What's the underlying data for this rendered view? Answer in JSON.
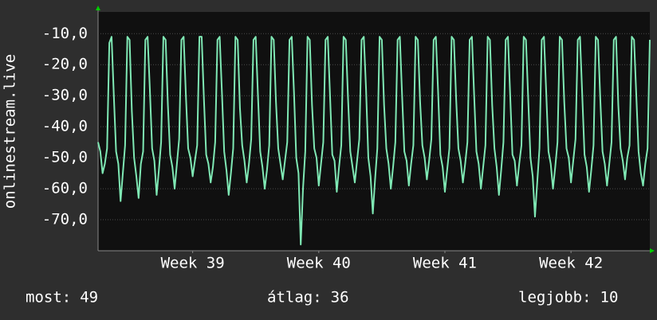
{
  "chart_data": {
    "type": "line",
    "ylabel": "onlinestream.live",
    "color": "#7fe8b4",
    "values": [
      -45,
      -48,
      -55,
      -52,
      -47,
      -13,
      -11,
      -30,
      -48,
      -52,
      -64,
      -55,
      -46,
      -11,
      -12,
      -35,
      -50,
      -56,
      -63,
      -52,
      -48,
      -12,
      -11,
      -28,
      -47,
      -51,
      -62,
      -54,
      -45,
      -11,
      -12,
      -33,
      -49,
      -53,
      -60,
      -52,
      -44,
      -12,
      -11,
      -30,
      -47,
      -50,
      -56,
      -51,
      -46,
      -11,
      -11,
      -31,
      -49,
      -52,
      -58,
      -53,
      -45,
      -12,
      -11,
      -29,
      -48,
      -54,
      -62,
      -55,
      -47,
      -11,
      -12,
      -34,
      -46,
      -51,
      -58,
      -52,
      -44,
      -12,
      -11,
      -30,
      -48,
      -53,
      -60,
      -54,
      -46,
      -11,
      -12,
      -32,
      -47,
      -52,
      -57,
      -51,
      -45,
      -12,
      -11,
      -29,
      -50,
      -55,
      -78,
      -60,
      -48,
      -11,
      -12,
      -33,
      -47,
      -50,
      -59,
      -52,
      -45,
      -12,
      -11,
      -30,
      -49,
      -51,
      -61,
      -53,
      -46,
      -11,
      -12,
      -31,
      -48,
      -53,
      -58,
      -51,
      -44,
      -12,
      -11,
      -28,
      -50,
      -56,
      -68,
      -57,
      -47,
      -11,
      -12,
      -33,
      -47,
      -52,
      -60,
      -53,
      -45,
      -12,
      -11,
      -30,
      -48,
      -51,
      -59,
      -52,
      -46,
      -11,
      -12,
      -32,
      -46,
      -50,
      -57,
      -51,
      -44,
      -12,
      -11,
      -29,
      -49,
      -53,
      -61,
      -54,
      -47,
      -11,
      -12,
      -31,
      -47,
      -51,
      -58,
      -52,
      -45,
      -12,
      -11,
      -30,
      -48,
      -52,
      -60,
      -53,
      -46,
      -11,
      -12,
      -33,
      -47,
      -53,
      -62,
      -54,
      -45,
      -12,
      -11,
      -30,
      -49,
      -51,
      -59,
      -52,
      -46,
      -11,
      -12,
      -31,
      -50,
      -56,
      -69,
      -58,
      -47,
      -12,
      -11,
      -29,
      -48,
      -52,
      -60,
      -53,
      -45,
      -11,
      -12,
      -32,
      -47,
      -50,
      -58,
      -51,
      -44,
      -12,
      -11,
      -30,
      -49,
      -53,
      -61,
      -54,
      -46,
      -11,
      -12,
      -31,
      -48,
      -52,
      -59,
      -52,
      -45,
      -12,
      -11,
      -33,
      -47,
      -51,
      -57,
      -50,
      -46,
      -11,
      -12,
      -30,
      -48,
      -55,
      -59,
      -52,
      -47,
      -12
    ],
    "xlim": [
      0,
      245
    ],
    "xticks": [
      {
        "value": 42,
        "label": "Week 39"
      },
      {
        "value": 98,
        "label": "Week 40"
      },
      {
        "value": 154,
        "label": "Week 41"
      },
      {
        "value": 210,
        "label": "Week 42"
      }
    ],
    "ylim": [
      -80,
      -3
    ],
    "yticks": [
      {
        "value": -70,
        "label": "-70,0"
      },
      {
        "value": -60,
        "label": "-60,0"
      },
      {
        "value": -50,
        "label": "-50,0"
      },
      {
        "value": -40,
        "label": "-40,0"
      },
      {
        "value": -30,
        "label": "-30,0"
      },
      {
        "value": -20,
        "label": "-20,0"
      },
      {
        "value": -10,
        "label": "-10,0"
      }
    ],
    "grid": true,
    "stats": [
      {
        "label": "most:",
        "value": 49
      },
      {
        "label": "átlag:",
        "value": 36
      },
      {
        "label": "legjobb:",
        "value": 10
      }
    ]
  }
}
